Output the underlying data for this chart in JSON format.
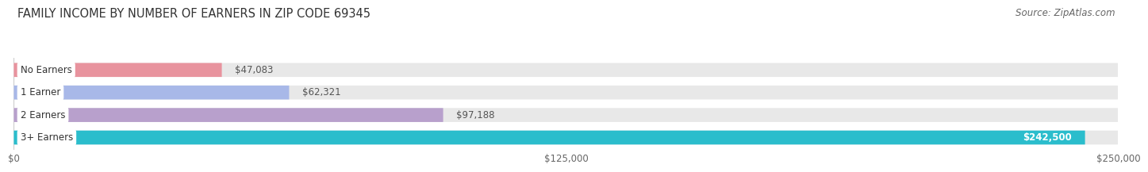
{
  "title": "FAMILY INCOME BY NUMBER OF EARNERS IN ZIP CODE 69345",
  "source": "Source: ZipAtlas.com",
  "categories": [
    "No Earners",
    "1 Earner",
    "2 Earners",
    "3+ Earners"
  ],
  "values": [
    47083,
    62321,
    97188,
    242500
  ],
  "bar_colors": [
    "#E8939E",
    "#A8B8E8",
    "#B8A0CC",
    "#2BBDCC"
  ],
  "label_colors": [
    "#444444",
    "#444444",
    "#444444",
    "#ffffff"
  ],
  "value_labels": [
    "$47,083",
    "$62,321",
    "$97,188",
    "$242,500"
  ],
  "xlim": [
    0,
    250000
  ],
  "xticks": [
    0,
    125000,
    250000
  ],
  "xtick_labels": [
    "$0",
    "$125,000",
    "$250,000"
  ],
  "background_color": "#ffffff",
  "bar_background_color": "#e8e8e8",
  "title_fontsize": 10.5,
  "source_fontsize": 8.5,
  "label_fontsize": 8.5,
  "value_fontsize": 8.5
}
